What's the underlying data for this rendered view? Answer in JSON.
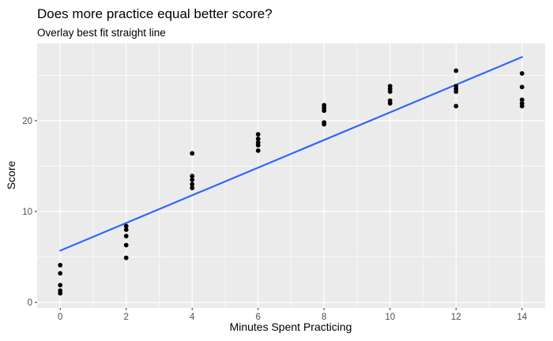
{
  "chart_data": {
    "type": "scatter",
    "title": "Does more practice equal better score?",
    "subtitle": "Overlay best fit straight line",
    "xlabel": "Minutes Spent Practicing",
    "ylabel": "Score",
    "xlim": [
      -0.7,
      14.7
    ],
    "ylim": [
      -0.6,
      28.5
    ],
    "x_ticks": [
      "0",
      "2",
      "4",
      "6",
      "8",
      "10",
      "12",
      "14"
    ],
    "y_ticks": [
      "0",
      "10",
      "20"
    ],
    "x_tick_values": [
      0,
      2,
      4,
      6,
      8,
      10,
      12,
      14
    ],
    "y_tick_values": [
      0,
      10,
      20
    ],
    "x_minor_values": [
      1,
      3,
      5,
      7,
      9,
      11,
      13
    ],
    "y_minor_values": [
      5,
      15,
      25
    ],
    "grid": true,
    "panel_color": "#ebebeb",
    "grid_color": "#ffffff",
    "point_color": "#000000",
    "line_color": "#3366ff",
    "points": [
      {
        "x": 0,
        "y": 4.1
      },
      {
        "x": 0,
        "y": 3.2
      },
      {
        "x": 0,
        "y": 1.9
      },
      {
        "x": 0,
        "y": 1.3
      },
      {
        "x": 0,
        "y": 1.0
      },
      {
        "x": 2,
        "y": 8.4
      },
      {
        "x": 2,
        "y": 8.0
      },
      {
        "x": 2,
        "y": 7.3
      },
      {
        "x": 2,
        "y": 6.3
      },
      {
        "x": 2,
        "y": 4.9
      },
      {
        "x": 4,
        "y": 16.4
      },
      {
        "x": 4,
        "y": 13.9
      },
      {
        "x": 4,
        "y": 13.5
      },
      {
        "x": 4,
        "y": 13.0
      },
      {
        "x": 4,
        "y": 12.6
      },
      {
        "x": 6,
        "y": 18.5
      },
      {
        "x": 6,
        "y": 18.0
      },
      {
        "x": 6,
        "y": 17.6
      },
      {
        "x": 6,
        "y": 17.3
      },
      {
        "x": 6,
        "y": 16.7
      },
      {
        "x": 8,
        "y": 21.7
      },
      {
        "x": 8,
        "y": 21.4
      },
      {
        "x": 8,
        "y": 21.1
      },
      {
        "x": 8,
        "y": 19.8
      },
      {
        "x": 8,
        "y": 19.6
      },
      {
        "x": 10,
        "y": 23.8
      },
      {
        "x": 10,
        "y": 23.5
      },
      {
        "x": 10,
        "y": 23.2
      },
      {
        "x": 10,
        "y": 22.2
      },
      {
        "x": 10,
        "y": 21.9
      },
      {
        "x": 12,
        "y": 25.5
      },
      {
        "x": 12,
        "y": 23.8
      },
      {
        "x": 12,
        "y": 23.5
      },
      {
        "x": 12,
        "y": 23.2
      },
      {
        "x": 12,
        "y": 21.6
      },
      {
        "x": 14,
        "y": 25.2
      },
      {
        "x": 14,
        "y": 23.7
      },
      {
        "x": 14,
        "y": 22.3
      },
      {
        "x": 14,
        "y": 21.9
      },
      {
        "x": 14,
        "y": 21.6
      }
    ],
    "fit_line": {
      "x": [
        0,
        14
      ],
      "y": [
        5.7,
        27.0
      ]
    }
  }
}
